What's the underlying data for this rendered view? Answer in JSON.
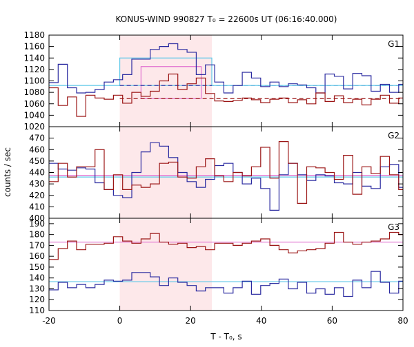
{
  "chart_data": {
    "type": "line",
    "title": "KONUS-WIND 990827 T₀ = 22600s UT (06:16:40.000)",
    "xlabel": "T - T₀, s",
    "ylabel": "counts / sec",
    "xlim": [
      -20,
      80
    ],
    "x_ticks": [
      -20,
      0,
      20,
      40,
      60,
      80
    ],
    "highlight_interval": [
      0,
      26
    ],
    "highlight_color": "#fde8ea",
    "grid": false,
    "panels": [
      {
        "label": "G1",
        "ylim": [
          1020,
          1180
        ],
        "y_ticks": [
          1020,
          1040,
          1060,
          1080,
          1100,
          1120,
          1140,
          1160,
          1180
        ],
        "series": [
          {
            "color": "#2a2aa0",
            "x": [
              -20,
              -17.4,
              -14.8,
              -12.2,
              -9.6,
              -7,
              -4.4,
              -1.8,
              0.8,
              3.4,
              6,
              8.6,
              11.2,
              13.8,
              16.4,
              19,
              21.6,
              24.2,
              26.8,
              29.4,
              32,
              34.6,
              37.2,
              39.8,
              42.4,
              45,
              47.6,
              50.2,
              52.8,
              55.4,
              58,
              60.6,
              63.2,
              65.8,
              68.4,
              71,
              73.6,
              76.2,
              78.8
            ],
            "values": [
              1097,
              1129,
              1088,
              1079,
              1080,
              1085,
              1098,
              1102,
              1111,
              1138,
              1138,
              1155,
              1160,
              1165,
              1155,
              1150,
              1111,
              1128,
              1098,
              1079,
              1092,
              1115,
              1105,
              1090,
              1098,
              1090,
              1095,
              1093,
              1088,
              1079,
              1112,
              1108,
              1086,
              1113,
              1109,
              1082,
              1094,
              1080,
              1094
            ]
          },
          {
            "color": "#9b1515",
            "x": [
              -20,
              -17.4,
              -14.8,
              -12.2,
              -9.6,
              -7,
              -4.4,
              -1.8,
              0.8,
              3.4,
              6,
              8.6,
              11.2,
              13.8,
              16.4,
              19,
              21.6,
              24.2,
              26.8,
              29.4,
              32,
              34.6,
              37.2,
              39.8,
              42.4,
              45,
              47.6,
              50.2,
              52.8,
              55.4,
              58,
              60.6,
              63.2,
              65.8,
              68.4,
              71,
              73.6,
              76.2,
              78.8
            ],
            "values": [
              1088,
              1057,
              1072,
              1038,
              1075,
              1070,
              1068,
              1075,
              1061,
              1080,
              1073,
              1082,
              1100,
              1112,
              1085,
              1095,
              1105,
              1078,
              1065,
              1064,
              1066,
              1070,
              1067,
              1062,
              1068,
              1070,
              1062,
              1067,
              1060,
              1079,
              1064,
              1074,
              1062,
              1068,
              1058,
              1068,
              1075,
              1061,
              1070
            ]
          }
        ],
        "levels": [
          {
            "color": "#5fc8e8",
            "value": 1092,
            "style": "solid",
            "x_range": [
              -20,
              0
            ]
          },
          {
            "color": "#2a2aa0",
            "value": 1092,
            "style": "dashed",
            "x_range": [
              0,
              80
            ]
          },
          {
            "color": "#5fc8e8",
            "value": 1092,
            "style": "solid",
            "x_range": [
              26,
              80
            ]
          },
          {
            "color": "#9b1515",
            "value": 1069,
            "style": "dashed",
            "x_range": [
              0,
              80
            ]
          }
        ],
        "rects": [
          {
            "color": "#5fc8e8",
            "x_range": [
              0,
              26
            ],
            "y_range": [
              1092,
              1140
            ]
          },
          {
            "color": "#e070d0",
            "x_range": [
              6,
              23
            ],
            "y_range": [
              1069,
              1125
            ]
          }
        ]
      },
      {
        "label": "G2",
        "ylim": [
          400,
          480
        ],
        "y_ticks": [
          400,
          410,
          420,
          430,
          440,
          450,
          460,
          470
        ],
        "series": [
          {
            "color": "#2a2aa0",
            "x": [
              -20,
              -17.4,
              -14.8,
              -12.2,
              -9.6,
              -7,
              -4.4,
              -1.8,
              0.8,
              3.4,
              6,
              8.6,
              11.2,
              13.8,
              16.4,
              19,
              21.6,
              24.2,
              26.8,
              29.4,
              32,
              34.6,
              37.2,
              39.8,
              42.4,
              45,
              47.6,
              50.2,
              52.8,
              55.4,
              58,
              60.6,
              63.2,
              65.8,
              68.4,
              71,
              73.6,
              76.2,
              78.8
            ],
            "values": [
              448,
              443,
              442,
              444,
              443,
              431,
              425,
              420,
              418,
              440,
              458,
              466,
              463,
              453,
              440,
              432,
              427,
              434,
              446,
              448,
              440,
              430,
              435,
              426,
              407,
              438,
              448,
              438,
              433,
              438,
              437,
              431,
              430,
              440,
              428,
              426,
              445,
              447,
              427
            ]
          },
          {
            "color": "#9b1515",
            "x": [
              -20,
              -17.4,
              -14.8,
              -12.2,
              -9.6,
              -7,
              -4.4,
              -1.8,
              0.8,
              3.4,
              6,
              8.6,
              11.2,
              13.8,
              16.4,
              19,
              21.6,
              24.2,
              26.8,
              29.4,
              32,
              34.6,
              37.2,
              39.8,
              42.4,
              45,
              47.6,
              50.2,
              52.8,
              55.4,
              58,
              60.6,
              63.2,
              65.8,
              68.4,
              71,
              73.6,
              76.2,
              78.8
            ],
            "values": [
              432,
              448,
              436,
              445,
              445,
              460,
              425,
              438,
              425,
              429,
              427,
              430,
              448,
              449,
              436,
              435,
              445,
              452,
              437,
              432,
              440,
              437,
              445,
              462,
              435,
              467,
              448,
              413,
              445,
              444,
              440,
              434,
              455,
              421,
              445,
              439,
              454,
              438,
              425
            ]
          }
        ],
        "levels": [
          {
            "color": "#5fc8e8",
            "value": 436,
            "style": "solid",
            "x_range": [
              -20,
              80
            ]
          },
          {
            "color": "#e070d0",
            "value": 437.5,
            "style": "solid",
            "x_range": [
              -20,
              80
            ]
          }
        ],
        "rects": []
      },
      {
        "label": "G3",
        "ylim": [
          110,
          195
        ],
        "y_ticks": [
          110,
          120,
          130,
          140,
          150,
          160,
          170,
          180,
          190
        ],
        "series": [
          {
            "color": "#2a2aa0",
            "x": [
              -20,
              -17.4,
              -14.8,
              -12.2,
              -9.6,
              -7,
              -4.4,
              -1.8,
              0.8,
              3.4,
              6,
              8.6,
              11.2,
              13.8,
              16.4,
              19,
              21.6,
              24.2,
              26.8,
              29.4,
              32,
              34.6,
              37.2,
              39.8,
              42.4,
              45,
              47.6,
              50.2,
              52.8,
              55.4,
              58,
              60.6,
              63.2,
              65.8,
              68.4,
              71,
              73.6,
              76.2,
              78.8
            ],
            "values": [
              129,
              136,
              131,
              134,
              131,
              134,
              138,
              137,
              138,
              145,
              145,
              141,
              133,
              140,
              136,
              133,
              128,
              131,
              131,
              126,
              131,
              137,
              125,
              133,
              135,
              139,
              130,
              136,
              126,
              130,
              125,
              131,
              123,
              138,
              131,
              146,
              136,
              126,
              137
            ]
          },
          {
            "color": "#9b1515",
            "x": [
              -20,
              -17.4,
              -14.8,
              -12.2,
              -9.6,
              -7,
              -4.4,
              -1.8,
              0.8,
              3.4,
              6,
              8.6,
              11.2,
              13.8,
              16.4,
              19,
              21.6,
              24.2,
              26.8,
              29.4,
              32,
              34.6,
              37.2,
              39.8,
              42.4,
              45,
              47.6,
              50.2,
              52.8,
              55.4,
              58,
              60.6,
              63.2,
              65.8,
              68.4,
              71,
              73.6,
              76.2,
              78.8
            ],
            "values": [
              157,
              167,
              174,
              166,
              171,
              171,
              172,
              178,
              174,
              172,
              176,
              181,
              173,
              171,
              172,
              168,
              169,
              166,
              172,
              172,
              170,
              172,
              174,
              176,
              170,
              166,
              163,
              165,
              166,
              167,
              172,
              182,
              173,
              171,
              173,
              174,
              176,
              182,
              180
            ]
          }
        ],
        "levels": [
          {
            "color": "#5fc8e8",
            "value": 136.5,
            "style": "solid",
            "x_range": [
              -20,
              80
            ]
          },
          {
            "color": "#e070d0",
            "value": 173,
            "style": "solid",
            "x_range": [
              -20,
              80
            ]
          }
        ],
        "rects": []
      }
    ]
  }
}
